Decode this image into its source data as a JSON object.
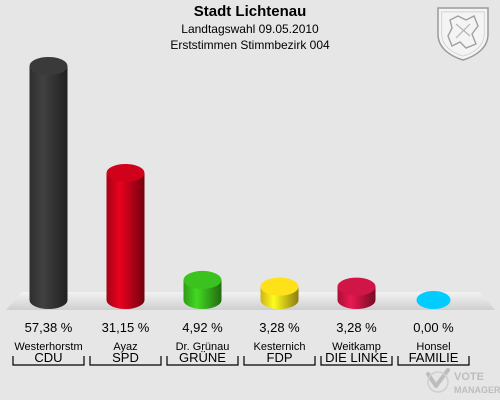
{
  "header": {
    "title": "Stadt Lichtenau",
    "subtitle1": "Landtagswahl 09.05.2010",
    "subtitle2": "Erststimmen Stimmbezirk 004"
  },
  "logo": {
    "line1": "VOTE",
    "line2": "MANAGER"
  },
  "chart_data": {
    "type": "bar",
    "categories": [
      "CDU",
      "SPD",
      "GRÜNE",
      "FDP",
      "DIE LINKE",
      "FAMILIE"
    ],
    "candidates": [
      "Westerhorstm",
      "Ayaz",
      "Dr. Grünau",
      "Kesternich",
      "Weitkamp",
      "Honsel"
    ],
    "values": [
      57.38,
      31.15,
      4.92,
      3.28,
      3.28,
      0.0
    ],
    "value_labels": [
      "57,38 %",
      "31,15 %",
      "4,92 %",
      "3,28 %",
      "3,28 %",
      "0,00 %"
    ],
    "colors": [
      "#3a3a3a",
      "#d0021b",
      "#3cc21e",
      "#ffe11a",
      "#d11547",
      "#00ccff"
    ],
    "ylim": [
      0,
      57.38
    ]
  }
}
